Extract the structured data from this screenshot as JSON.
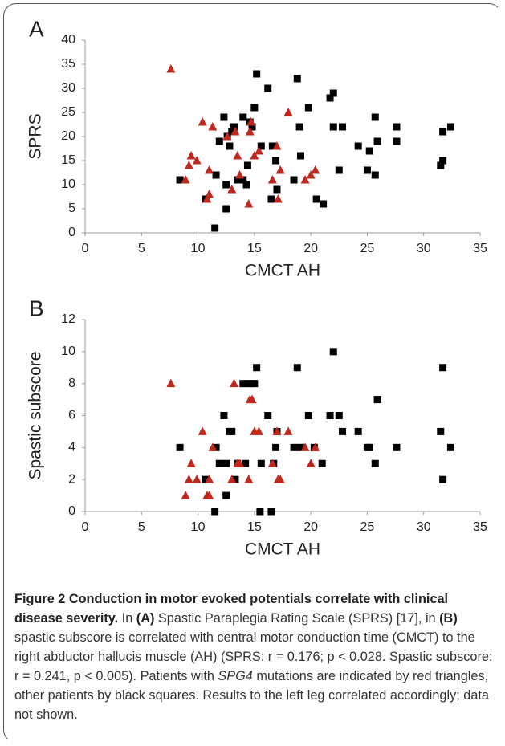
{
  "chart_data": [
    {
      "type": "scatter",
      "panel_label": "A",
      "x_label": "CMCT AH",
      "y_label": "SPRS",
      "xlim": [
        0,
        35
      ],
      "xticks": [
        0,
        5,
        10,
        15,
        20,
        25,
        30,
        35
      ],
      "ylim": [
        0,
        40
      ],
      "yticks": [
        0,
        5,
        10,
        15,
        20,
        25,
        30,
        35,
        40
      ],
      "series": [
        {
          "color": "#000000",
          "marker": "square",
          "x": [
            8.4,
            10.7,
            11.5,
            11.6,
            11.9,
            12.3,
            12.5,
            12.5,
            12.6,
            12.8,
            13,
            13.2,
            13.5,
            14,
            14,
            14.3,
            14.4,
            14.6,
            14.8,
            15,
            15.2,
            15.6,
            16.2,
            16.5,
            16.6,
            16.9,
            17,
            18.5,
            18.8,
            19,
            19.1,
            19.8,
            20.5,
            21.1,
            21.7,
            22,
            22,
            22.5,
            22.8,
            24.2,
            25,
            25.2,
            25.7,
            25.7,
            25.9,
            27.6,
            27.6,
            31.5,
            31.7,
            31.7,
            32.4
          ],
          "values": [
            11,
            7,
            1,
            12,
            19,
            24,
            5,
            10,
            20,
            18,
            21,
            22,
            11,
            24,
            11,
            10,
            14,
            23,
            22,
            26,
            33,
            18,
            30,
            7,
            18,
            15,
            9,
            11,
            32,
            22,
            16,
            26,
            7,
            6,
            28,
            29,
            22,
            13,
            22,
            18,
            13,
            17,
            12,
            24,
            19,
            22,
            19,
            14,
            21,
            15,
            22
          ]
        },
        {
          "color": "#c0281e",
          "marker": "triangle",
          "x": [
            7.6,
            8.9,
            9.2,
            9.4,
            9.9,
            10.4,
            10.8,
            11,
            11,
            11.3,
            12.6,
            13,
            13.3,
            13.5,
            13.7,
            14.5,
            14.6,
            14.7,
            15,
            15.4,
            16.6,
            17,
            17.1,
            17.3,
            18,
            19.5,
            20,
            20.4
          ],
          "values": [
            34,
            11,
            14,
            16,
            15,
            23,
            7,
            8,
            13,
            22,
            20,
            9,
            21,
            16,
            12,
            6,
            21,
            23,
            16,
            17,
            11,
            18,
            7,
            13,
            25,
            11,
            12,
            13
          ]
        }
      ]
    },
    {
      "type": "scatter",
      "panel_label": "B",
      "x_label": "CMCT AH",
      "y_label": "Spastic subscore",
      "xlim": [
        0,
        35
      ],
      "xticks": [
        0,
        5,
        10,
        15,
        20,
        25,
        30,
        35
      ],
      "ylim": [
        0,
        12
      ],
      "yticks": [
        0,
        2,
        4,
        6,
        8,
        10,
        12
      ],
      "series": [
        {
          "color": "#000000",
          "marker": "square",
          "x": [
            8.4,
            10.7,
            11.5,
            11.6,
            11.9,
            12.3,
            12.5,
            12.5,
            12.8,
            13,
            13.3,
            13.5,
            14,
            14.2,
            14.6,
            15,
            15.2,
            15.5,
            15.6,
            16.2,
            16.5,
            16.7,
            16.9,
            17,
            18.5,
            18.8,
            19.1,
            19.8,
            20.3,
            21,
            21.7,
            22,
            22.5,
            22.8,
            24.2,
            25,
            25.2,
            25.7,
            25.9,
            27.6,
            31.5,
            31.7,
            31.7,
            32.4
          ],
          "values": [
            4,
            2,
            0,
            4,
            3,
            6,
            1,
            3,
            5,
            5,
            2,
            3,
            8,
            3,
            8,
            8,
            9,
            0,
            3,
            6,
            0,
            3,
            4,
            5,
            4,
            9,
            4,
            6,
            4,
            3,
            6,
            10,
            6,
            5,
            5,
            4,
            4,
            3,
            7,
            4,
            5,
            9,
            2,
            4
          ]
        },
        {
          "color": "#c0281e",
          "marker": "triangle",
          "x": [
            7.6,
            8.9,
            9.2,
            9.4,
            9.9,
            10.4,
            10.8,
            11,
            11,
            11.3,
            13,
            13.2,
            13.5,
            13.7,
            14.5,
            14.6,
            14.8,
            15,
            15.4,
            16.6,
            17,
            17.1,
            17.3,
            18,
            19.5,
            20,
            20.4
          ],
          "values": [
            8,
            1,
            2,
            3,
            2,
            5,
            1,
            2,
            1,
            4,
            2,
            8,
            3,
            3,
            2,
            7,
            7,
            5,
            5,
            3,
            5,
            2,
            2,
            5,
            4,
            3,
            4
          ]
        }
      ]
    }
  ],
  "caption": {
    "title": "Figure 2 Conduction in motor evoked potentials correlate with clinical disease severity.",
    "parts": [
      " In ",
      "(A)",
      " Spastic Paraplegia Rating Scale (SPRS) [17], in ",
      "(B)",
      " spastic subscore is correlated with central motor conduction time (CMCT) to the right abductor hallucis muscle (AH) (SPRS: r = 0.176; p < 0.028. Spastic subscore: r = 0.241, p < 0.005). Patients with ",
      "SPG4",
      " mutations are indicated by red triangles, other patients by black squares. Results to the left leg correlated accordingly; data not shown."
    ]
  }
}
